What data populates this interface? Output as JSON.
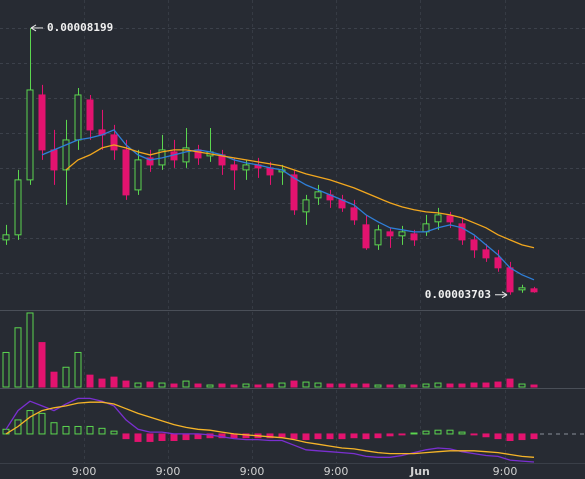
{
  "chart_data": {
    "type": "candlestick",
    "up_color": "#5bd64f",
    "down_color": "#e3136f",
    "ylim": [
      3.48e-05,
      8.67e-05
    ],
    "open": [
      4.628e-05,
      4.713e-05,
      5.639e-05,
      7.07e-05,
      6.144e-05,
      5.807e-05,
      6.312e-05,
      6.986e-05,
      6.481e-05,
      6.397e-05,
      6.144e-05,
      5.47e-05,
      6.009e-05,
      5.891e-05,
      6.11e-05,
      5.942e-05,
      6.144e-05,
      6.043e-05,
      6.06e-05,
      5.891e-05,
      5.807e-05,
      5.891e-05,
      5.841e-05,
      5.774e-05,
      5.723e-05,
      5.1e-05,
      5.336e-05,
      5.386e-05,
      5.302e-05,
      5.167e-05,
      4.881e-05,
      4.544e-05,
      4.763e-05,
      4.696e-05,
      4.729e-05,
      4.763e-05,
      4.932e-05,
      5.033e-05,
      4.898e-05,
      4.628e-05,
      4.46e-05,
      4.325e-05,
      4.157e-05,
      3.786e-05,
      3.803e-05
    ],
    "close": [
      4.713e-05,
      5.639e-05,
      7.154e-05,
      6.144e-05,
      5.807e-05,
      6.312e-05,
      7.07e-05,
      6.481e-05,
      6.397e-05,
      6.144e-05,
      5.386e-05,
      5.976e-05,
      5.891e-05,
      6.144e-05,
      5.976e-05,
      6.178e-05,
      6.009e-05,
      6.11e-05,
      5.891e-05,
      5.807e-05,
      5.891e-05,
      5.841e-05,
      5.723e-05,
      5.807e-05,
      5.134e-05,
      5.302e-05,
      5.437e-05,
      5.302e-05,
      5.167e-05,
      4.965e-05,
      4.494e-05,
      4.797e-05,
      4.696e-05,
      4.763e-05,
      4.628e-05,
      4.898e-05,
      5.049e-05,
      4.932e-05,
      4.628e-05,
      4.46e-05,
      4.325e-05,
      4.157e-05,
      3.753e-05,
      3.82e-05,
      3.753e-05
    ],
    "high": [
      4.881e-05,
      5.807e-05,
      8.199e-05,
      7.239e-05,
      6.481e-05,
      6.649e-05,
      7.188e-05,
      7.07e-05,
      6.818e-05,
      6.565e-05,
      6.312e-05,
      6.144e-05,
      6.144e-05,
      6.397e-05,
      6.312e-05,
      6.514e-05,
      6.228e-05,
      6.514e-05,
      6.144e-05,
      6.009e-05,
      5.976e-05,
      6.009e-05,
      5.942e-05,
      5.891e-05,
      5.807e-05,
      5.386e-05,
      5.555e-05,
      5.47e-05,
      5.386e-05,
      5.302e-05,
      5.049e-05,
      4.881e-05,
      4.831e-05,
      4.864e-05,
      4.797e-05,
      5.049e-05,
      5.167e-05,
      5.1e-05,
      4.999e-05,
      4.696e-05,
      4.561e-05,
      4.46e-05,
      4.258e-05,
      3.871e-05,
      3.837e-05
    ],
    "low": [
      4.544e-05,
      4.628e-05,
      5.555e-05,
      5.976e-05,
      5.555e-05,
      5.218e-05,
      6.144e-05,
      6.312e-05,
      6.144e-05,
      5.976e-05,
      5.302e-05,
      5.386e-05,
      5.774e-05,
      5.807e-05,
      5.841e-05,
      5.841e-05,
      5.891e-05,
      5.942e-05,
      5.723e-05,
      5.47e-05,
      5.639e-05,
      5.672e-05,
      5.555e-05,
      5.555e-05,
      5.049e-05,
      4.881e-05,
      5.218e-05,
      5.167e-05,
      5.1e-05,
      4.881e-05,
      4.46e-05,
      4.46e-05,
      4.494e-05,
      4.544e-05,
      4.527e-05,
      4.696e-05,
      4.797e-05,
      4.831e-05,
      4.544e-05,
      4.325e-05,
      4.258e-05,
      4.09e-05,
      3.703e-05,
      3.736e-05,
      3.736e-05
    ],
    "moving_averages": [
      {
        "color": "#2f7fd8",
        "values": [
          null,
          null,
          null,
          6.06e-05,
          6.144e-05,
          6.228e-05,
          6.312e-05,
          6.346e-05,
          6.397e-05,
          6.481e-05,
          6.228e-05,
          6.06e-05,
          5.976e-05,
          6.009e-05,
          6.06e-05,
          6.11e-05,
          6.144e-05,
          6.11e-05,
          6.06e-05,
          5.976e-05,
          5.925e-05,
          5.891e-05,
          5.841e-05,
          5.807e-05,
          5.672e-05,
          5.555e-05,
          5.47e-05,
          5.386e-05,
          5.302e-05,
          5.218e-05,
          5.049e-05,
          4.932e-05,
          4.831e-05,
          4.797e-05,
          4.763e-05,
          4.763e-05,
          4.831e-05,
          4.881e-05,
          4.831e-05,
          4.713e-05,
          4.544e-05,
          4.376e-05,
          4.157e-05,
          4.039e-05,
          3.955e-05
        ]
      },
      {
        "color": "#f2a71e",
        "values": [
          null,
          null,
          null,
          null,
          null,
          5.807e-05,
          5.976e-05,
          6.06e-05,
          6.178e-05,
          6.228e-05,
          6.178e-05,
          6.11e-05,
          6.06e-05,
          6.11e-05,
          6.144e-05,
          6.144e-05,
          6.11e-05,
          6.077e-05,
          6.043e-05,
          6.009e-05,
          5.976e-05,
          5.942e-05,
          5.908e-05,
          5.875e-05,
          5.807e-05,
          5.74e-05,
          5.689e-05,
          5.639e-05,
          5.571e-05,
          5.504e-05,
          5.42e-05,
          5.336e-05,
          5.251e-05,
          5.184e-05,
          5.134e-05,
          5.1e-05,
          5.083e-05,
          5.049e-05,
          4.999e-05,
          4.915e-05,
          4.831e-05,
          4.713e-05,
          4.628e-05,
          4.544e-05,
          4.494e-05
        ]
      }
    ],
    "volume": {
      "ylim": [
        0,
        76
      ],
      "values": [
        35,
        60,
        75,
        45,
        15,
        20,
        35,
        12,
        8,
        10,
        6,
        4,
        5,
        4,
        3,
        6,
        3,
        2,
        3,
        2,
        3,
        2,
        3,
        4,
        6,
        5,
        4,
        3,
        3,
        3,
        3,
        2,
        2,
        2,
        2,
        3,
        4,
        3,
        3,
        4,
        4,
        5,
        8,
        3,
        2
      ]
    },
    "macd": {
      "ylim": [
        -30,
        47
      ],
      "histogram": [
        5,
        15,
        25,
        22,
        12,
        8,
        8,
        8,
        6,
        3,
        -5,
        -8,
        -8,
        -7,
        -7,
        -6,
        -5,
        -4,
        -4,
        -4,
        -4,
        -4,
        -4,
        -3,
        -5,
        -6,
        -5,
        -5,
        -5,
        -4,
        -5,
        -4,
        -2,
        -1,
        1,
        3,
        4,
        4,
        2,
        -1,
        -3,
        -5,
        -7,
        -6,
        -5
      ],
      "macd_color": "#7a2fd0",
      "macd": [
        5,
        25,
        35,
        30,
        25,
        32,
        38,
        38,
        35,
        30,
        15,
        5,
        2,
        2,
        0,
        0,
        0,
        -1,
        -3,
        -5,
        -6,
        -6,
        -7,
        -7,
        -12,
        -17,
        -18,
        -19,
        -20,
        -21,
        -24,
        -25,
        -25,
        -23,
        -20,
        -17,
        -15,
        -16,
        -19,
        -21,
        -23,
        -24,
        -28,
        -29,
        -30
      ],
      "signal_color": "#f5b428",
      "signal": [
        0,
        8,
        18,
        25,
        28,
        30,
        33,
        34,
        34,
        32,
        27,
        22,
        18,
        14,
        10,
        7,
        5,
        4,
        2,
        0,
        -1,
        -2,
        -3,
        -4,
        -6,
        -9,
        -11,
        -13,
        -15,
        -16,
        -18,
        -20,
        -21,
        -21,
        -21,
        -20,
        -19,
        -18,
        -18,
        -18,
        -19,
        -20,
        -22,
        -24,
        -25
      ]
    },
    "annotations": [
      "0.00008199",
      "0.00003703"
    ],
    "x_labels": [
      "9:00",
      "9:00",
      "9:00",
      "9:00",
      "Jun",
      "9:00"
    ]
  }
}
